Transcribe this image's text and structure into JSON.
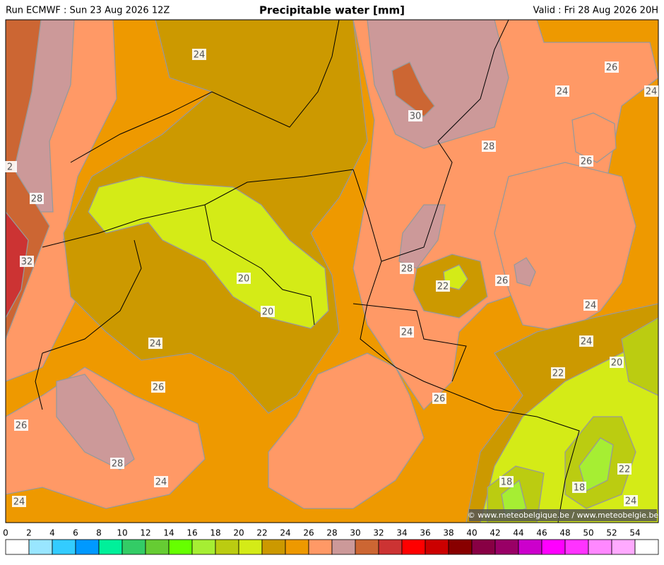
{
  "header": {
    "run": "Run ECMWF : Sun 23 Aug 2026 12Z",
    "title": "Precipitable water [mm]",
    "valid": "Valid : Fri 28 Aug 2026 20H"
  },
  "map": {
    "contour_labels": [
      24,
      30,
      28,
      26,
      24,
      24,
      26,
      2,
      28,
      32,
      20,
      20,
      28,
      22,
      26,
      24,
      24,
      24,
      24,
      20,
      22,
      26,
      26,
      26,
      28,
      24,
      18,
      18,
      22,
      24,
      24
    ],
    "copyright": "© www.meteobelgique.be / www.meteobelgie.be"
  },
  "colorbar": {
    "ticks": [
      0,
      2,
      4,
      6,
      8,
      10,
      12,
      14,
      16,
      18,
      20,
      22,
      24,
      26,
      28,
      30,
      32,
      34,
      36,
      38,
      40,
      42,
      44,
      46,
      48,
      50,
      52,
      54
    ],
    "colors": [
      "#ffffff",
      "#99e6ff",
      "#33ccff",
      "#0099ff",
      "#00f09a",
      "#33cc66",
      "#66cc33",
      "#66ff00",
      "#a6ee33",
      "#bbcc11",
      "#d4eb17",
      "#cc9900",
      "#ee9900",
      "#ff9966",
      "#cc9999",
      "#cc6633",
      "#cc3333",
      "#ff0000",
      "#cc0000",
      "#880000",
      "#880044",
      "#990066",
      "#cc00cc",
      "#ff00ff",
      "#ff33ff",
      "#ff88ff",
      "#ffaaff",
      "#ffffff"
    ]
  }
}
